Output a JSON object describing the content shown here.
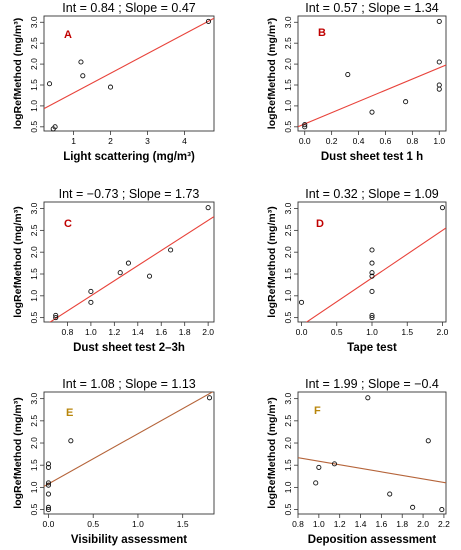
{
  "chart_data": [
    {
      "type": "scatter",
      "panel": "A",
      "title": "Int = 0.84 ; Slope = 0.47",
      "xlabel": "Light scattering (mg/m³)",
      "ylabel": "logRefMethod (mg/m³)",
      "xlim": [
        0.2,
        4.8
      ],
      "ylim": [
        0.4,
        3.15
      ],
      "xticks": [
        1,
        2,
        3,
        4
      ],
      "yticks": [
        0.5,
        1.0,
        1.5,
        2.0,
        2.5,
        3.0
      ],
      "x": [
        0.35,
        0.45,
        0.5,
        1.2,
        1.25,
        2.0,
        4.65
      ],
      "y": [
        1.53,
        0.45,
        0.5,
        2.05,
        1.72,
        1.45,
        3.02
      ],
      "line": {
        "intercept": 0.84,
        "slope": 0.47,
        "color": "#e8433b"
      },
      "label_color": "#c00000"
    },
    {
      "type": "scatter",
      "panel": "B",
      "title": "Int = 0.57 ; Slope = 1.34",
      "xlabel": "Dust sheet test 1 h",
      "ylabel": "logRefMethod (mg/m³)",
      "xlim": [
        -0.05,
        1.05
      ],
      "ylim": [
        0.4,
        3.15
      ],
      "xticks": [
        0.0,
        0.2,
        0.4,
        0.6,
        0.8,
        1.0
      ],
      "yticks": [
        0.5,
        1.0,
        1.5,
        2.0,
        2.5,
        3.0
      ],
      "x": [
        0.0,
        0.0,
        0.32,
        0.5,
        0.75,
        1.0,
        1.0,
        1.0,
        1.0
      ],
      "y": [
        0.5,
        0.55,
        1.75,
        0.85,
        1.1,
        2.05,
        1.5,
        1.4,
        3.02
      ],
      "line": {
        "intercept": 0.57,
        "slope": 1.34,
        "color": "#e8433b"
      },
      "label_color": "#c00000"
    },
    {
      "type": "scatter",
      "panel": "C",
      "title": "Int = −0.73 ; Slope = 1.73",
      "xlabel": "Dust sheet test 2–3h",
      "ylabel": "logRefMethod (mg/m³)",
      "xlim": [
        0.6,
        2.05
      ],
      "ylim": [
        0.4,
        3.15
      ],
      "xticks": [
        0.8,
        1.0,
        1.2,
        1.4,
        1.6,
        1.8,
        2.0
      ],
      "yticks": [
        0.5,
        1.0,
        1.5,
        2.0,
        2.5,
        3.0
      ],
      "x": [
        0.7,
        0.7,
        1.0,
        1.0,
        1.25,
        1.32,
        1.5,
        1.68,
        2.0
      ],
      "y": [
        0.5,
        0.55,
        1.1,
        0.85,
        1.53,
        1.75,
        1.45,
        2.05,
        3.02
      ],
      "line": {
        "intercept": -0.73,
        "slope": 1.73,
        "color": "#e8433b"
      },
      "label_color": "#c00000"
    },
    {
      "type": "scatter",
      "panel": "D",
      "title": "Int = 0.32 ; Slope = 1.09",
      "xlabel": "Tape test",
      "ylabel": "logRefMethod (mg/m³)",
      "xlim": [
        -0.05,
        2.05
      ],
      "ylim": [
        0.4,
        3.15
      ],
      "xticks": [
        0.0,
        0.5,
        1.0,
        1.5,
        2.0
      ],
      "yticks": [
        0.5,
        1.0,
        1.5,
        2.0,
        2.5,
        3.0
      ],
      "x": [
        0.0,
        1.0,
        1.0,
        1.0,
        1.0,
        1.0,
        1.0,
        1.0,
        2.0
      ],
      "y": [
        0.85,
        0.5,
        0.55,
        1.1,
        1.45,
        1.53,
        1.75,
        2.05,
        3.02
      ],
      "line": {
        "intercept": 0.32,
        "slope": 1.09,
        "color": "#e8433b"
      },
      "label_color": "#c00000"
    },
    {
      "type": "scatter",
      "panel": "E",
      "title": "Int = 1.08 ; Slope = 1.13",
      "xlabel": "Visibility assessment",
      "ylabel": "logRefMethod (mg/m³)",
      "xlim": [
        -0.05,
        1.85
      ],
      "ylim": [
        0.4,
        3.15
      ],
      "xticks": [
        0.0,
        0.5,
        1.0,
        1.5
      ],
      "yticks": [
        0.5,
        1.0,
        1.5,
        2.0,
        2.5,
        3.0
      ],
      "x": [
        0.0,
        0.0,
        0.0,
        0.0,
        0.0,
        0.0,
        0.0,
        0.25,
        1.8
      ],
      "y": [
        0.5,
        0.55,
        0.85,
        1.1,
        1.45,
        1.53,
        1.05,
        2.05,
        3.02
      ],
      "line": {
        "intercept": 1.08,
        "slope": 1.13,
        "color": "#b5643a"
      },
      "label_color": "#b8860b"
    },
    {
      "type": "scatter",
      "panel": "F",
      "title": "Int = 1.99 ; Slope = −0.4",
      "xlabel": "Deposition assessment",
      "ylabel": "logRefMethod (mg/m³)",
      "xlim": [
        0.8,
        2.22
      ],
      "ylim": [
        0.4,
        3.15
      ],
      "xticks": [
        0.8,
        1.0,
        1.2,
        1.4,
        1.6,
        1.8,
        2.0,
        2.2
      ],
      "yticks": [
        0.5,
        1.0,
        1.5,
        2.0,
        2.5,
        3.0
      ],
      "x": [
        0.97,
        1.0,
        1.15,
        1.47,
        1.68,
        1.9,
        2.05,
        2.18
      ],
      "y": [
        1.1,
        1.45,
        1.53,
        3.02,
        0.85,
        0.55,
        2.05,
        0.5
      ],
      "line": {
        "intercept": 1.99,
        "slope": -0.4,
        "color": "#b5643a"
      },
      "label_color": "#b8860b"
    }
  ]
}
